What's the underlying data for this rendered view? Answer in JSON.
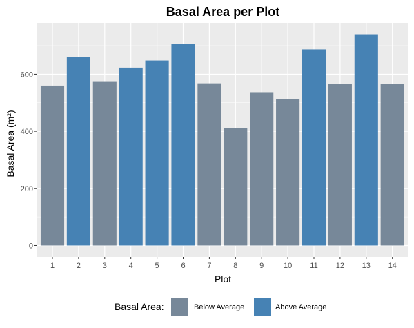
{
  "chart_data": {
    "type": "bar",
    "title": "Basal Area per Plot",
    "xlabel": "Plot",
    "ylabel": "Basal Area (m²)",
    "categories": [
      "1",
      "2",
      "3",
      "4",
      "5",
      "6",
      "7",
      "8",
      "9",
      "10",
      "11",
      "12",
      "13",
      "14"
    ],
    "values": [
      560,
      660,
      573,
      623,
      648,
      707,
      568,
      410,
      537,
      513,
      687,
      566,
      740,
      566
    ],
    "groups": [
      "Below Average",
      "Above Average",
      "Below Average",
      "Above Average",
      "Above Average",
      "Above Average",
      "Below Average",
      "Below Average",
      "Below Average",
      "Below Average",
      "Above Average",
      "Below Average",
      "Above Average",
      "Below Average"
    ],
    "ylim": [
      -40,
      780
    ],
    "yticks": [
      0,
      200,
      400,
      600
    ],
    "grid": true,
    "legend": {
      "title": "Basal Area:",
      "position": "bottom",
      "entries": [
        {
          "name": "Below Average",
          "color": "#778899"
        },
        {
          "name": "Above Average",
          "color": "#4682B4"
        }
      ]
    },
    "colors": {
      "panel_background": "#EBEBEB",
      "gridline": "#FFFFFF",
      "Below Average": "#778899",
      "Above Average": "#4682B4"
    }
  }
}
